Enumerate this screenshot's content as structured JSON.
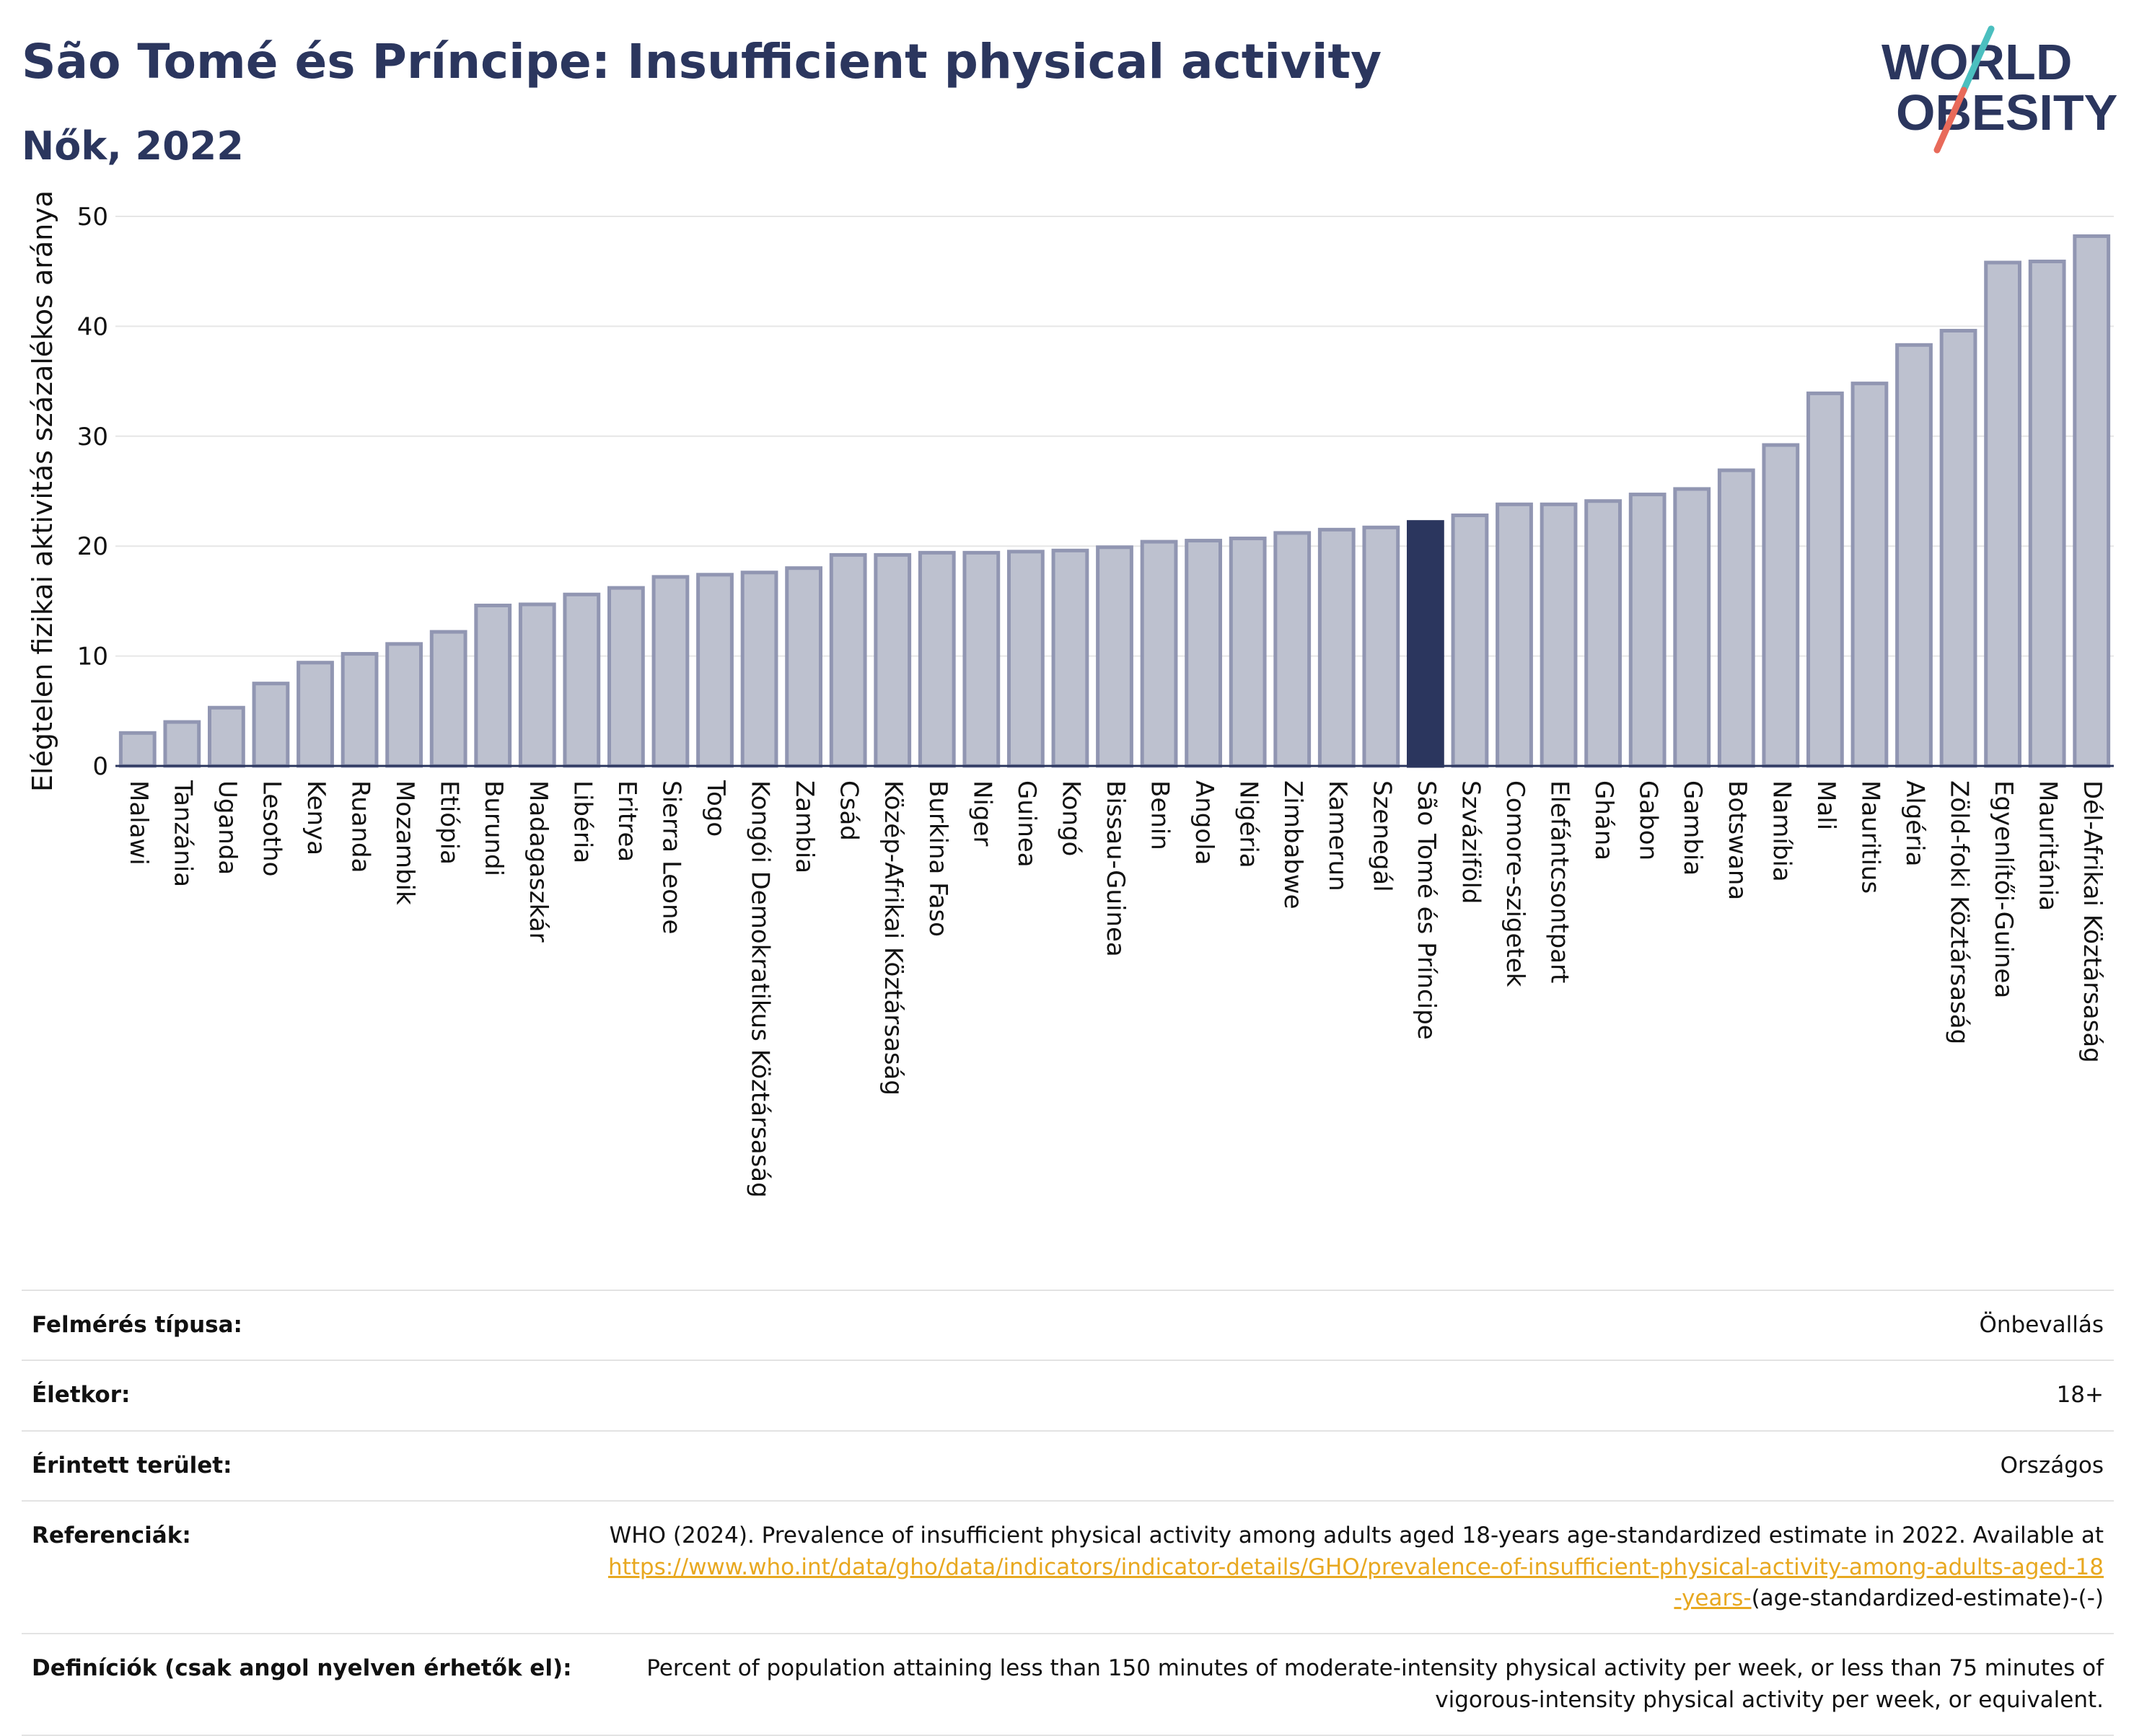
{
  "header": {
    "title": "São Tomé és Príncipe: Insufficient physical activity",
    "subtitle": "Nők, 2022"
  },
  "logo": {
    "line1": "WORLD",
    "line2": "OBESITY",
    "text_color": "#2b365e",
    "slash_colors": [
      "#4bbfbf",
      "#e86a5a"
    ]
  },
  "colors": {
    "bar": "#bdc1cf",
    "bar_border": "#9196b2",
    "highlight": "#2b365e",
    "axis": "#2b365e",
    "grid": "#e6e6e6"
  },
  "chart_data": {
    "type": "bar",
    "title": "São Tomé és Príncipe: Insufficient physical activity",
    "subtitle": "Nők, 2022",
    "ylabel": "Elégtelen fizikai aktivitás százalékos aránya",
    "xlabel": "",
    "ylim": [
      0,
      50
    ],
    "yticks": [
      0,
      10,
      20,
      30,
      40,
      50
    ],
    "grid": true,
    "highlight": "São Tomé és Príncipe",
    "categories": [
      "Malawi",
      "Tanzánia",
      "Uganda",
      "Lesotho",
      "Kenya",
      "Ruanda",
      "Mozambik",
      "Etiópia",
      "Burundi",
      "Madagaszkár",
      "Libéria",
      "Eritrea",
      "Sierra Leone",
      "Togo",
      "Kongói Demokratikus Köztársaság",
      "Zambia",
      "Csád",
      "Közép-Afrikai Köztársaság",
      "Burkina Faso",
      "Niger",
      "Guinea",
      "Kongó",
      "Bissau-Guinea",
      "Benin",
      "Angola",
      "Nigéria",
      "Zimbabwe",
      "Kamerun",
      "Szenegál",
      "São Tomé és Príncipe",
      "Szváziföld",
      "Comore-szigetek",
      "Elefántcsontpart",
      "Ghána",
      "Gabon",
      "Gambia",
      "Botswana",
      "Namíbia",
      "Mali",
      "Mauritius",
      "Algéria",
      "Zöld-foki Köztársaság",
      "Egyenlítői-Guinea",
      "Mauritánia",
      "Dél-Afrikai Köztársaság"
    ],
    "values": [
      3.0,
      4.0,
      5.3,
      7.5,
      9.4,
      10.2,
      11.1,
      12.2,
      14.6,
      14.7,
      15.6,
      16.2,
      17.2,
      17.4,
      17.6,
      18.0,
      19.2,
      19.2,
      19.4,
      19.4,
      19.5,
      19.6,
      19.9,
      20.4,
      20.5,
      20.7,
      21.2,
      21.5,
      21.7,
      22.2,
      22.8,
      23.8,
      23.8,
      24.1,
      24.7,
      25.2,
      26.9,
      29.2,
      33.9,
      34.8,
      38.3,
      39.6,
      45.8,
      45.9,
      48.2
    ]
  },
  "info_table": [
    {
      "label": "Felmérés típusa:",
      "value": "Önbevallás"
    },
    {
      "label": "Életkor:",
      "value": "18+"
    },
    {
      "label": "Érintett terület:",
      "value": "Országos"
    },
    {
      "label": "Referenciák:",
      "value": "WHO (2024). Prevalence of insufficient physical activity among adults aged 18-years age-standardized estimate in 2022. Available at",
      "link": "https://www.who.int/data/gho/data/indicators/indicator-details/GHO/prevalence-of-insufficient-physical-activity-among-adults-aged-18-years-",
      "suffix": "(age-standardized-estimate)-(-)"
    },
    {
      "label": "Definíciók (csak angol nyelven érhetők el):",
      "value": "Percent of population attaining less than 150 minutes of moderate-intensity physical activity per week, or less than 75 minutes of vigorous-intensity physical activity per week, or equivalent."
    }
  ]
}
